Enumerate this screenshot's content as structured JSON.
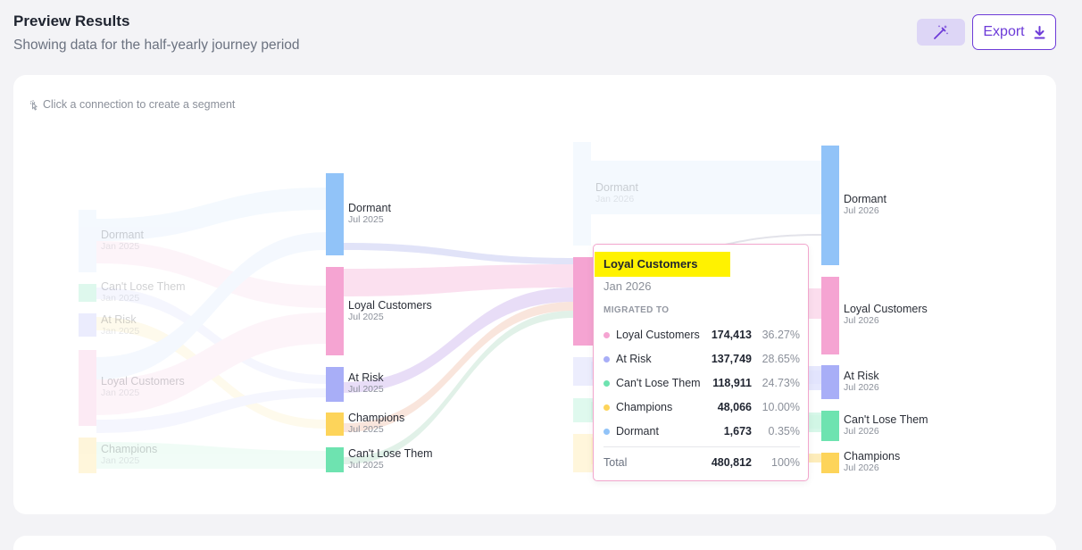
{
  "header": {
    "title": "Preview Results",
    "subtitle": "Showing data for the half-yearly journey period",
    "export_label": "Export"
  },
  "card": {
    "hint": "Click a connection to create a segment"
  },
  "colors": {
    "dormant": "#91c3f8",
    "loyal": "#f5a4d2",
    "at_risk": "#a8aef7",
    "champions": "#fdd45a",
    "cant_lose": "#6ee3b0",
    "accent": "#6d3bd8"
  },
  "sankey": {
    "columns": [
      {
        "period": "Jan 2025",
        "nodes": [
          {
            "name": "Dormant",
            "date": "Jan 2025"
          },
          {
            "name": "Can't Lose Them",
            "date": "Jan 2025"
          },
          {
            "name": "At Risk",
            "date": "Jan 2025"
          },
          {
            "name": "Loyal Customers",
            "date": "Jan 2025"
          },
          {
            "name": "Champions",
            "date": "Jan 2025"
          }
        ]
      },
      {
        "period": "Jul 2025",
        "nodes": [
          {
            "name": "Dormant",
            "date": "Jul 2025"
          },
          {
            "name": "Loyal Customers",
            "date": "Jul 2025"
          },
          {
            "name": "At Risk",
            "date": "Jul 2025"
          },
          {
            "name": "Champions",
            "date": "Jul 2025"
          },
          {
            "name": "Can't Lose Them",
            "date": "Jul 2025"
          }
        ]
      },
      {
        "period": "Jan 2026",
        "nodes": [
          {
            "name": "Dormant",
            "date": "Jan 2026"
          }
        ]
      },
      {
        "period": "Jul 2026",
        "nodes": [
          {
            "name": "Dormant",
            "date": "Jul 2026"
          },
          {
            "name": "Loyal Customers",
            "date": "Jul 2026"
          },
          {
            "name": "At Risk",
            "date": "Jul 2026"
          },
          {
            "name": "Can't Lose Them",
            "date": "Jul 2026"
          },
          {
            "name": "Champions",
            "date": "Jul 2026"
          }
        ]
      }
    ]
  },
  "tooltip": {
    "title": "Loyal Customers",
    "date": "Jan 2026",
    "heading": "MIGRATED TO",
    "rows": [
      {
        "name": "Loyal Customers",
        "value": "174,413",
        "pct": "36.27%",
        "color": "#f5a4d2"
      },
      {
        "name": "At Risk",
        "value": "137,749",
        "pct": "28.65%",
        "color": "#a8aef7"
      },
      {
        "name": "Can't Lose Them",
        "value": "118,911",
        "pct": "24.73%",
        "color": "#6ee3b0"
      },
      {
        "name": "Champions",
        "value": "48,066",
        "pct": "10.00%",
        "color": "#fdd45a"
      },
      {
        "name": "Dormant",
        "value": "1,673",
        "pct": "0.35%",
        "color": "#91c3f8"
      }
    ],
    "total_label": "Total",
    "total_value": "480,812",
    "total_pct": "100%"
  }
}
